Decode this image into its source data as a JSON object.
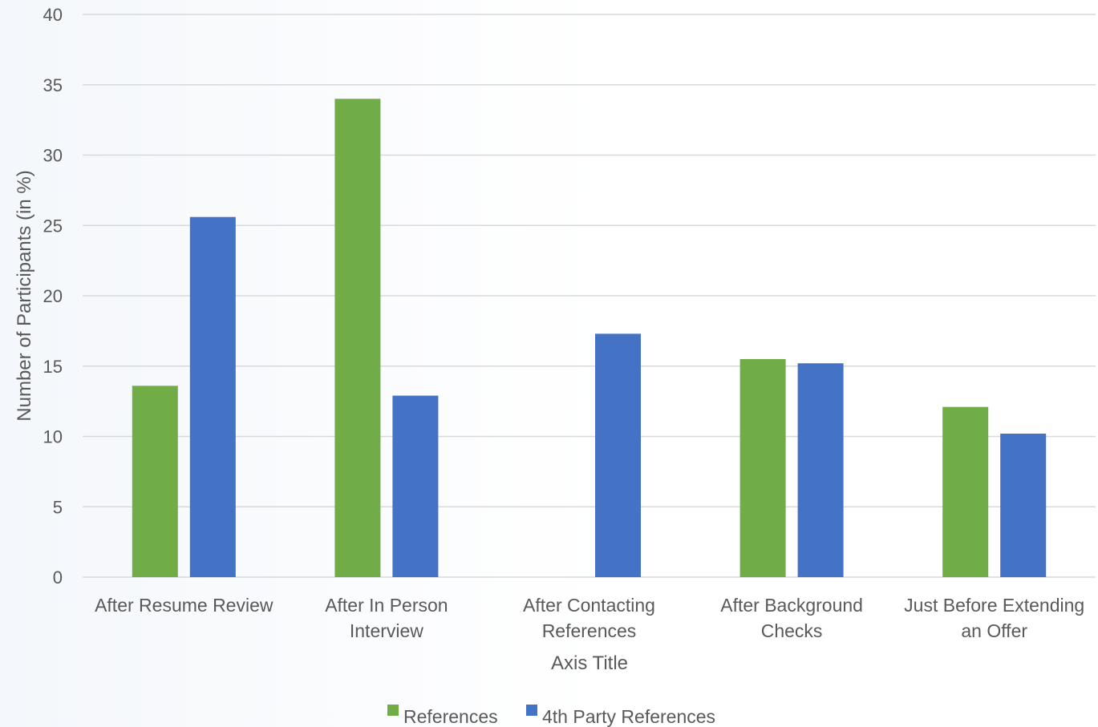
{
  "chart_data": {
    "type": "bar",
    "categories": [
      [
        "After Resume Review"
      ],
      [
        "After In Person",
        "Interview"
      ],
      [
        "After Contacting",
        "References"
      ],
      [
        "After Background",
        "Checks"
      ],
      [
        "Just Before Extending",
        "an Offer"
      ]
    ],
    "series": [
      {
        "name": "References",
        "color": "#70ad47",
        "values": [
          13.6,
          34.0,
          0,
          15.5,
          12.1
        ]
      },
      {
        "name": "4th Party References",
        "color": "#4472c4",
        "values": [
          25.6,
          12.9,
          17.3,
          15.2,
          10.2
        ]
      }
    ],
    "xlabel": "Axis Title",
    "ylabel": "Number of Participants (in %)",
    "ylim": [
      0,
      40
    ],
    "yticks": [
      0,
      5,
      10,
      15,
      20,
      25,
      30,
      35,
      40
    ],
    "grid": true,
    "legend_position": "bottom"
  }
}
